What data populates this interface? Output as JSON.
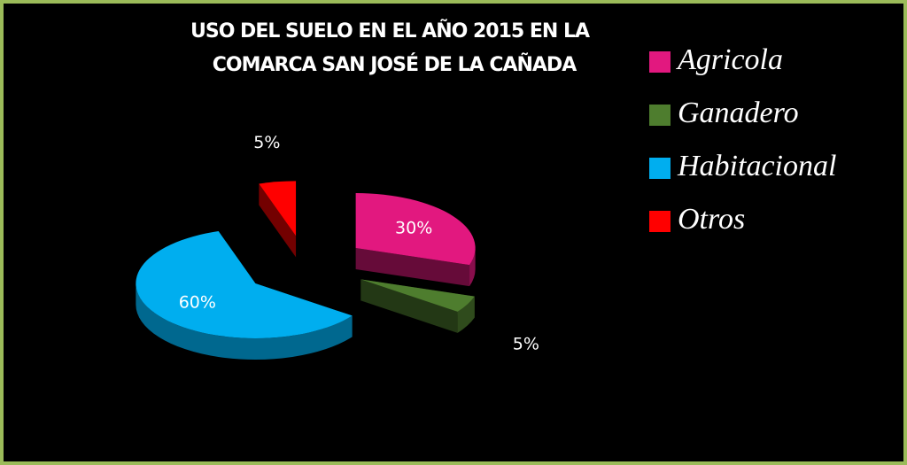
{
  "chart_data": {
    "type": "pie3d",
    "title": [
      "USO DEL SUELO  EN EL AÑO 2015 EN LA",
      "COMARCA SAN JOSÉ DE LA CAÑADA"
    ],
    "categories": [
      "Agricola",
      "Ganadero",
      "Habitacional",
      "Otros"
    ],
    "values": [
      30,
      5,
      60,
      5
    ],
    "value_labels": [
      "30%",
      "5%",
      "60%",
      "5%"
    ],
    "colors": [
      "#e2187f",
      "#4e7d2e",
      "#00aeef",
      "#ff0000"
    ],
    "legend": "right"
  }
}
